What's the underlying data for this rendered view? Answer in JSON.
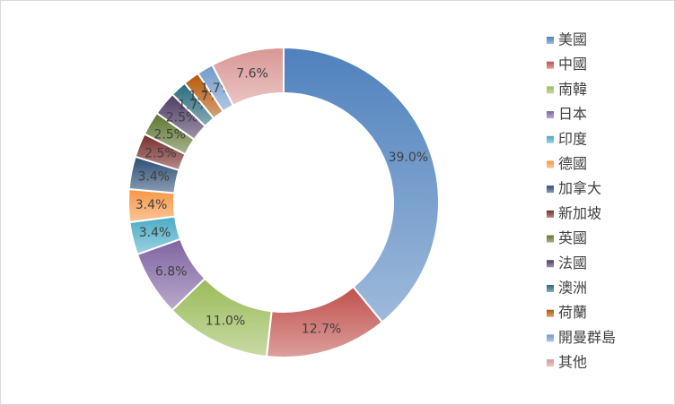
{
  "chart_data": {
    "type": "donut",
    "categories": [
      "美國",
      "中國",
      "南韓",
      "日本",
      "印度",
      "德國",
      "加拿大",
      "新加坡",
      "英國",
      "法國",
      "澳洲",
      "荷蘭",
      "開曼群島",
      "其他"
    ],
    "values": [
      39.0,
      12.7,
      11.0,
      6.8,
      3.4,
      3.4,
      3.4,
      2.5,
      2.5,
      2.5,
      1.7,
      1.7,
      1.7,
      7.6
    ],
    "value_labels": [
      "39.0%",
      "12.7%",
      "11.0%",
      "6.8%",
      "3.4%",
      "3.4%",
      "3.4%",
      "2.5%",
      "2.5%",
      "2.5%",
      "1.7%",
      "1.7%",
      "1.7%",
      "7.6%"
    ],
    "colors": [
      "#4f81bd",
      "#c0504d",
      "#9bbb59",
      "#8064a2",
      "#4bacc6",
      "#f79646",
      "#2c4d75",
      "#772c2a",
      "#5f7530",
      "#4d3b62",
      "#276a7c",
      "#b65708",
      "#729aca",
      "#d99694"
    ],
    "legend": "right"
  }
}
